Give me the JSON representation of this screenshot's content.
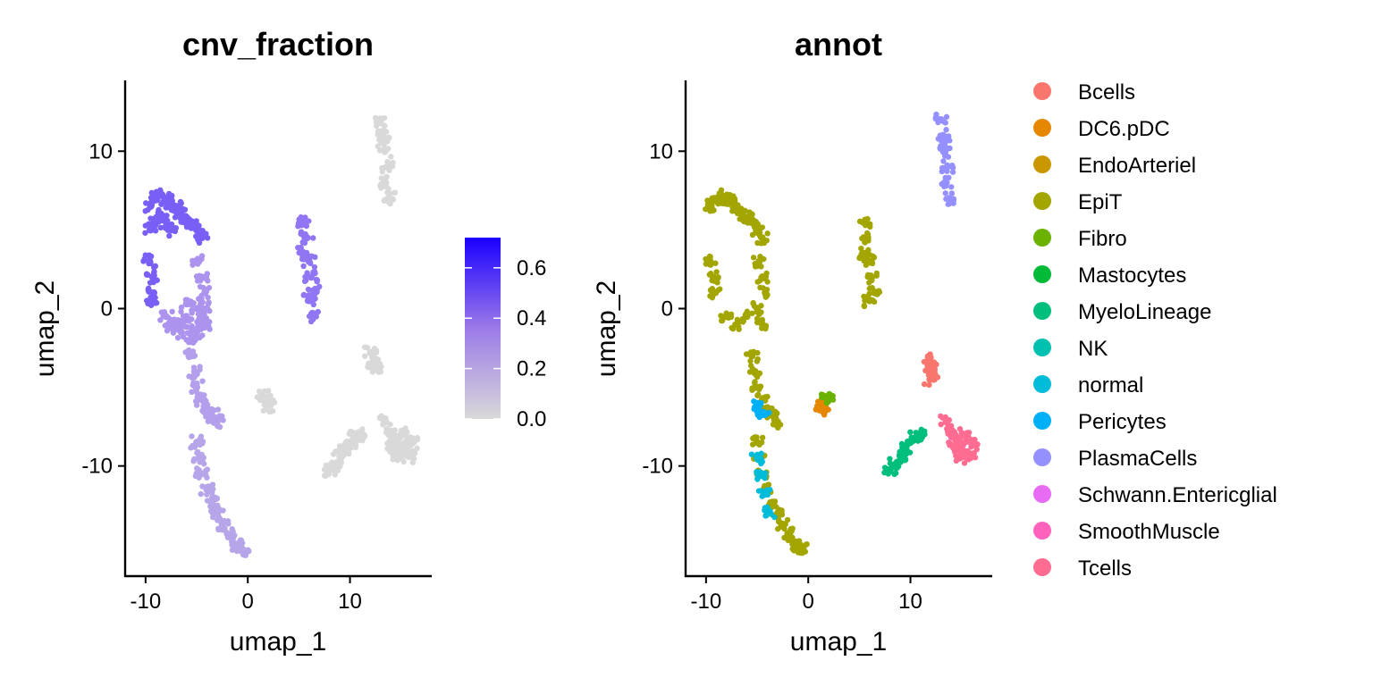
{
  "chart_data": [
    {
      "type": "scatter",
      "title": "cnv_fraction",
      "xlabel": "umap_1",
      "ylabel": "umap_2",
      "xlim": [
        -12,
        18
      ],
      "ylim": [
        -17,
        14.5
      ],
      "xticks": [
        -10,
        0,
        10
      ],
      "yticks": [
        -10,
        0,
        10
      ],
      "color_by": "cnv_fraction",
      "colorbar": {
        "min": 0.0,
        "max": 0.72,
        "low_color": "#d9d9d9",
        "high_color": "#1a00ff",
        "ticks": [
          0.0,
          0.2,
          0.4,
          0.6
        ],
        "tick_labels": [
          "0.0",
          "0.2",
          "0.4",
          "0.6"
        ]
      },
      "clusters": [
        {
          "x": [
            -9.5,
            -9,
            -8.5,
            -8,
            -7.5,
            -7,
            -6.5,
            -6,
            -5.5,
            -5,
            -4.5,
            -9.5,
            -9,
            -8.5,
            -8,
            -7.5,
            -9.6,
            -9.3,
            -9.2,
            -9.4
          ],
          "y": [
            6.5,
            7,
            7.2,
            7,
            6.8,
            6.5,
            6,
            5.8,
            5.5,
            5,
            4.5,
            5,
            5.5,
            6,
            5.5,
            5,
            3,
            2,
            1,
            0.5
          ],
          "value": 0.48
        },
        {
          "x": [
            -4.8,
            -4.5,
            -4.2,
            -4,
            -4.3,
            -4.6
          ],
          "y": [
            3,
            2,
            1,
            0,
            -1,
            -0.5
          ],
          "value": 0.33
        },
        {
          "x": [
            -8,
            -7,
            -6,
            -5,
            -4.5,
            -6.5,
            -5.5,
            -7.5,
            -6,
            -5
          ],
          "y": [
            -0.5,
            -1,
            -0.5,
            0,
            -1,
            -1.5,
            -1.8,
            -1.2,
            0.3,
            -1.5
          ],
          "value": 0.33
        },
        {
          "x": [
            -5.5,
            -5.2,
            -5,
            -4.5,
            -4,
            -3.5,
            -3
          ],
          "y": [
            -3,
            -4,
            -5,
            -5.8,
            -6.3,
            -6.8,
            -7.2
          ],
          "value": 0.28
        },
        {
          "x": [
            -5,
            -4.8,
            -4.5,
            -4,
            -3.5,
            -3,
            -2.5,
            -2,
            -1.5,
            -1,
            -0.5
          ],
          "y": [
            -8.5,
            -9.5,
            -10.5,
            -11.5,
            -12.3,
            -13,
            -13.7,
            -14.3,
            -14.8,
            -15.1,
            -15.3
          ],
          "value": 0.25
        },
        {
          "x": [
            5.5,
            5.8,
            6,
            6.2,
            6.5,
            5.5,
            6,
            6.5
          ],
          "y": [
            5.5,
            4.5,
            3,
            2,
            1,
            3.5,
            0.5,
            -0.5
          ],
          "value": 0.42
        },
        {
          "x": [
            13,
            13.2,
            13.4,
            13.6,
            13.5,
            13.8,
            13.3
          ],
          "y": [
            12,
            11,
            10,
            9,
            8,
            7,
            10.5
          ],
          "value": 0.0
        },
        {
          "x": [
            12,
            12.3,
            12.6,
            12.2
          ],
          "y": [
            -2.8,
            -3.3,
            -3.8,
            -3.5
          ],
          "value": 0.0
        },
        {
          "x": [
            1.5,
            1.8,
            2
          ],
          "y": [
            -5.6,
            -5.9,
            -6.2
          ],
          "value": 0.0
        },
        {
          "x": [
            8,
            8.5,
            9,
            9.5,
            10,
            10.5,
            11
          ],
          "y": [
            -10.3,
            -9.9,
            -9.4,
            -8.9,
            -8.5,
            -8.2,
            -8
          ],
          "value": 0.0
        },
        {
          "x": [
            13.5,
            14,
            14.5,
            15,
            15.5,
            16,
            14.8,
            15.3,
            14.2,
            15.8
          ],
          "y": [
            -7.2,
            -7.8,
            -8.4,
            -8.8,
            -9.2,
            -8.6,
            -9.5,
            -8,
            -8.8,
            -9.4
          ],
          "value": 0.0
        }
      ]
    },
    {
      "type": "scatter",
      "title": "annot",
      "xlabel": "umap_1",
      "ylabel": "umap_2",
      "xlim": [
        -12,
        18
      ],
      "ylim": [
        -17,
        14.5
      ],
      "xticks": [
        -10,
        0,
        10
      ],
      "yticks": [
        -10,
        0,
        10
      ],
      "color_by": "annot",
      "legend_position": "right",
      "series": [
        {
          "name": "Bcells",
          "color": "#F8766D",
          "x": [
            11.8,
            12,
            12.2,
            11.9
          ],
          "y": [
            -3.2,
            -3.6,
            -4,
            -4.5
          ]
        },
        {
          "name": "DC6.pDC",
          "color": "#E58700",
          "x": [
            1.3,
            1.4
          ],
          "y": [
            -6.2,
            -6.4
          ]
        },
        {
          "name": "EndoArteriel",
          "color": "#C99800",
          "x": [],
          "y": []
        },
        {
          "name": "EpiT",
          "color": "#A3A500",
          "x": [
            -9.5,
            -9,
            -8.5,
            -8,
            -7.5,
            -7,
            -6.5,
            -6,
            -5.5,
            -5,
            -4.5,
            -9.6,
            -9.3,
            -9.2,
            -4.8,
            -4.5,
            -4.2,
            -8,
            -7,
            -6,
            -5,
            -4.5,
            -5.5,
            -5.2,
            -5,
            -4.5,
            -4,
            -3.5,
            -3,
            -5,
            -4.8,
            -4.5,
            -4,
            -3.5,
            -3,
            -2.5,
            -2,
            -1.5,
            -1,
            -0.5,
            5.5,
            5.8,
            6,
            6.2,
            6.5,
            5.5,
            6
          ],
          "y": [
            6.5,
            7,
            7.2,
            7,
            6.8,
            6.5,
            6,
            5.8,
            5.5,
            5,
            4.5,
            3,
            2,
            1,
            3,
            2,
            1,
            -0.5,
            -1,
            -0.5,
            0,
            -1,
            -3,
            -4,
            -5,
            -5.8,
            -6.3,
            -6.8,
            -7.2,
            -8.5,
            -9.5,
            -10.5,
            -11.5,
            -12.3,
            -13,
            -13.7,
            -14.3,
            -14.8,
            -15.1,
            -15.3,
            5.5,
            4.5,
            3,
            2,
            1,
            3.5,
            0.5
          ]
        },
        {
          "name": "Fibro",
          "color": "#6BB100",
          "x": [
            1.7,
            1.9
          ],
          "y": [
            -5.6,
            -5.9
          ]
        },
        {
          "name": "Mastocytes",
          "color": "#00BA38",
          "x": [],
          "y": []
        },
        {
          "name": "MyeloLineage",
          "color": "#00BF7D",
          "x": [
            8,
            8.5,
            9,
            9.5,
            10,
            10.5,
            11
          ],
          "y": [
            -10.3,
            -9.9,
            -9.4,
            -8.9,
            -8.5,
            -8.2,
            -8
          ]
        },
        {
          "name": "NK",
          "color": "#00C0AF",
          "x": [],
          "y": []
        },
        {
          "name": "normal",
          "color": "#00BCD8",
          "x": [
            -5,
            -4.6,
            -4.3,
            -3.8
          ],
          "y": [
            -9.5,
            -10.6,
            -11.8,
            -12.9
          ]
        },
        {
          "name": "Pericytes",
          "color": "#00B0F6",
          "x": [
            -4.8,
            -4.4
          ],
          "y": [
            -6.2,
            -6.6
          ]
        },
        {
          "name": "PlasmaCells",
          "color": "#9590FF",
          "x": [
            13,
            13.2,
            13.4,
            13.6,
            13.5,
            13.8,
            13.3
          ],
          "y": [
            12,
            11,
            10,
            9,
            8,
            7,
            10.5
          ]
        },
        {
          "name": "Schwann.Entericglial",
          "color": "#E76BF3",
          "x": [],
          "y": []
        },
        {
          "name": "SmoothMuscle",
          "color": "#FF62BC",
          "x": [
            14.5,
            15
          ],
          "y": [
            -8.4,
            -9
          ]
        },
        {
          "name": "Tcells",
          "color": "#FF6C91",
          "x": [
            13.5,
            14,
            14.5,
            15,
            15.5,
            16,
            14.8,
            15.3,
            14.2,
            15.8
          ],
          "y": [
            -7.2,
            -7.8,
            -8.4,
            -8.8,
            -9.2,
            -8.6,
            -9.5,
            -8,
            -8.8,
            -9.4
          ]
        }
      ]
    }
  ]
}
